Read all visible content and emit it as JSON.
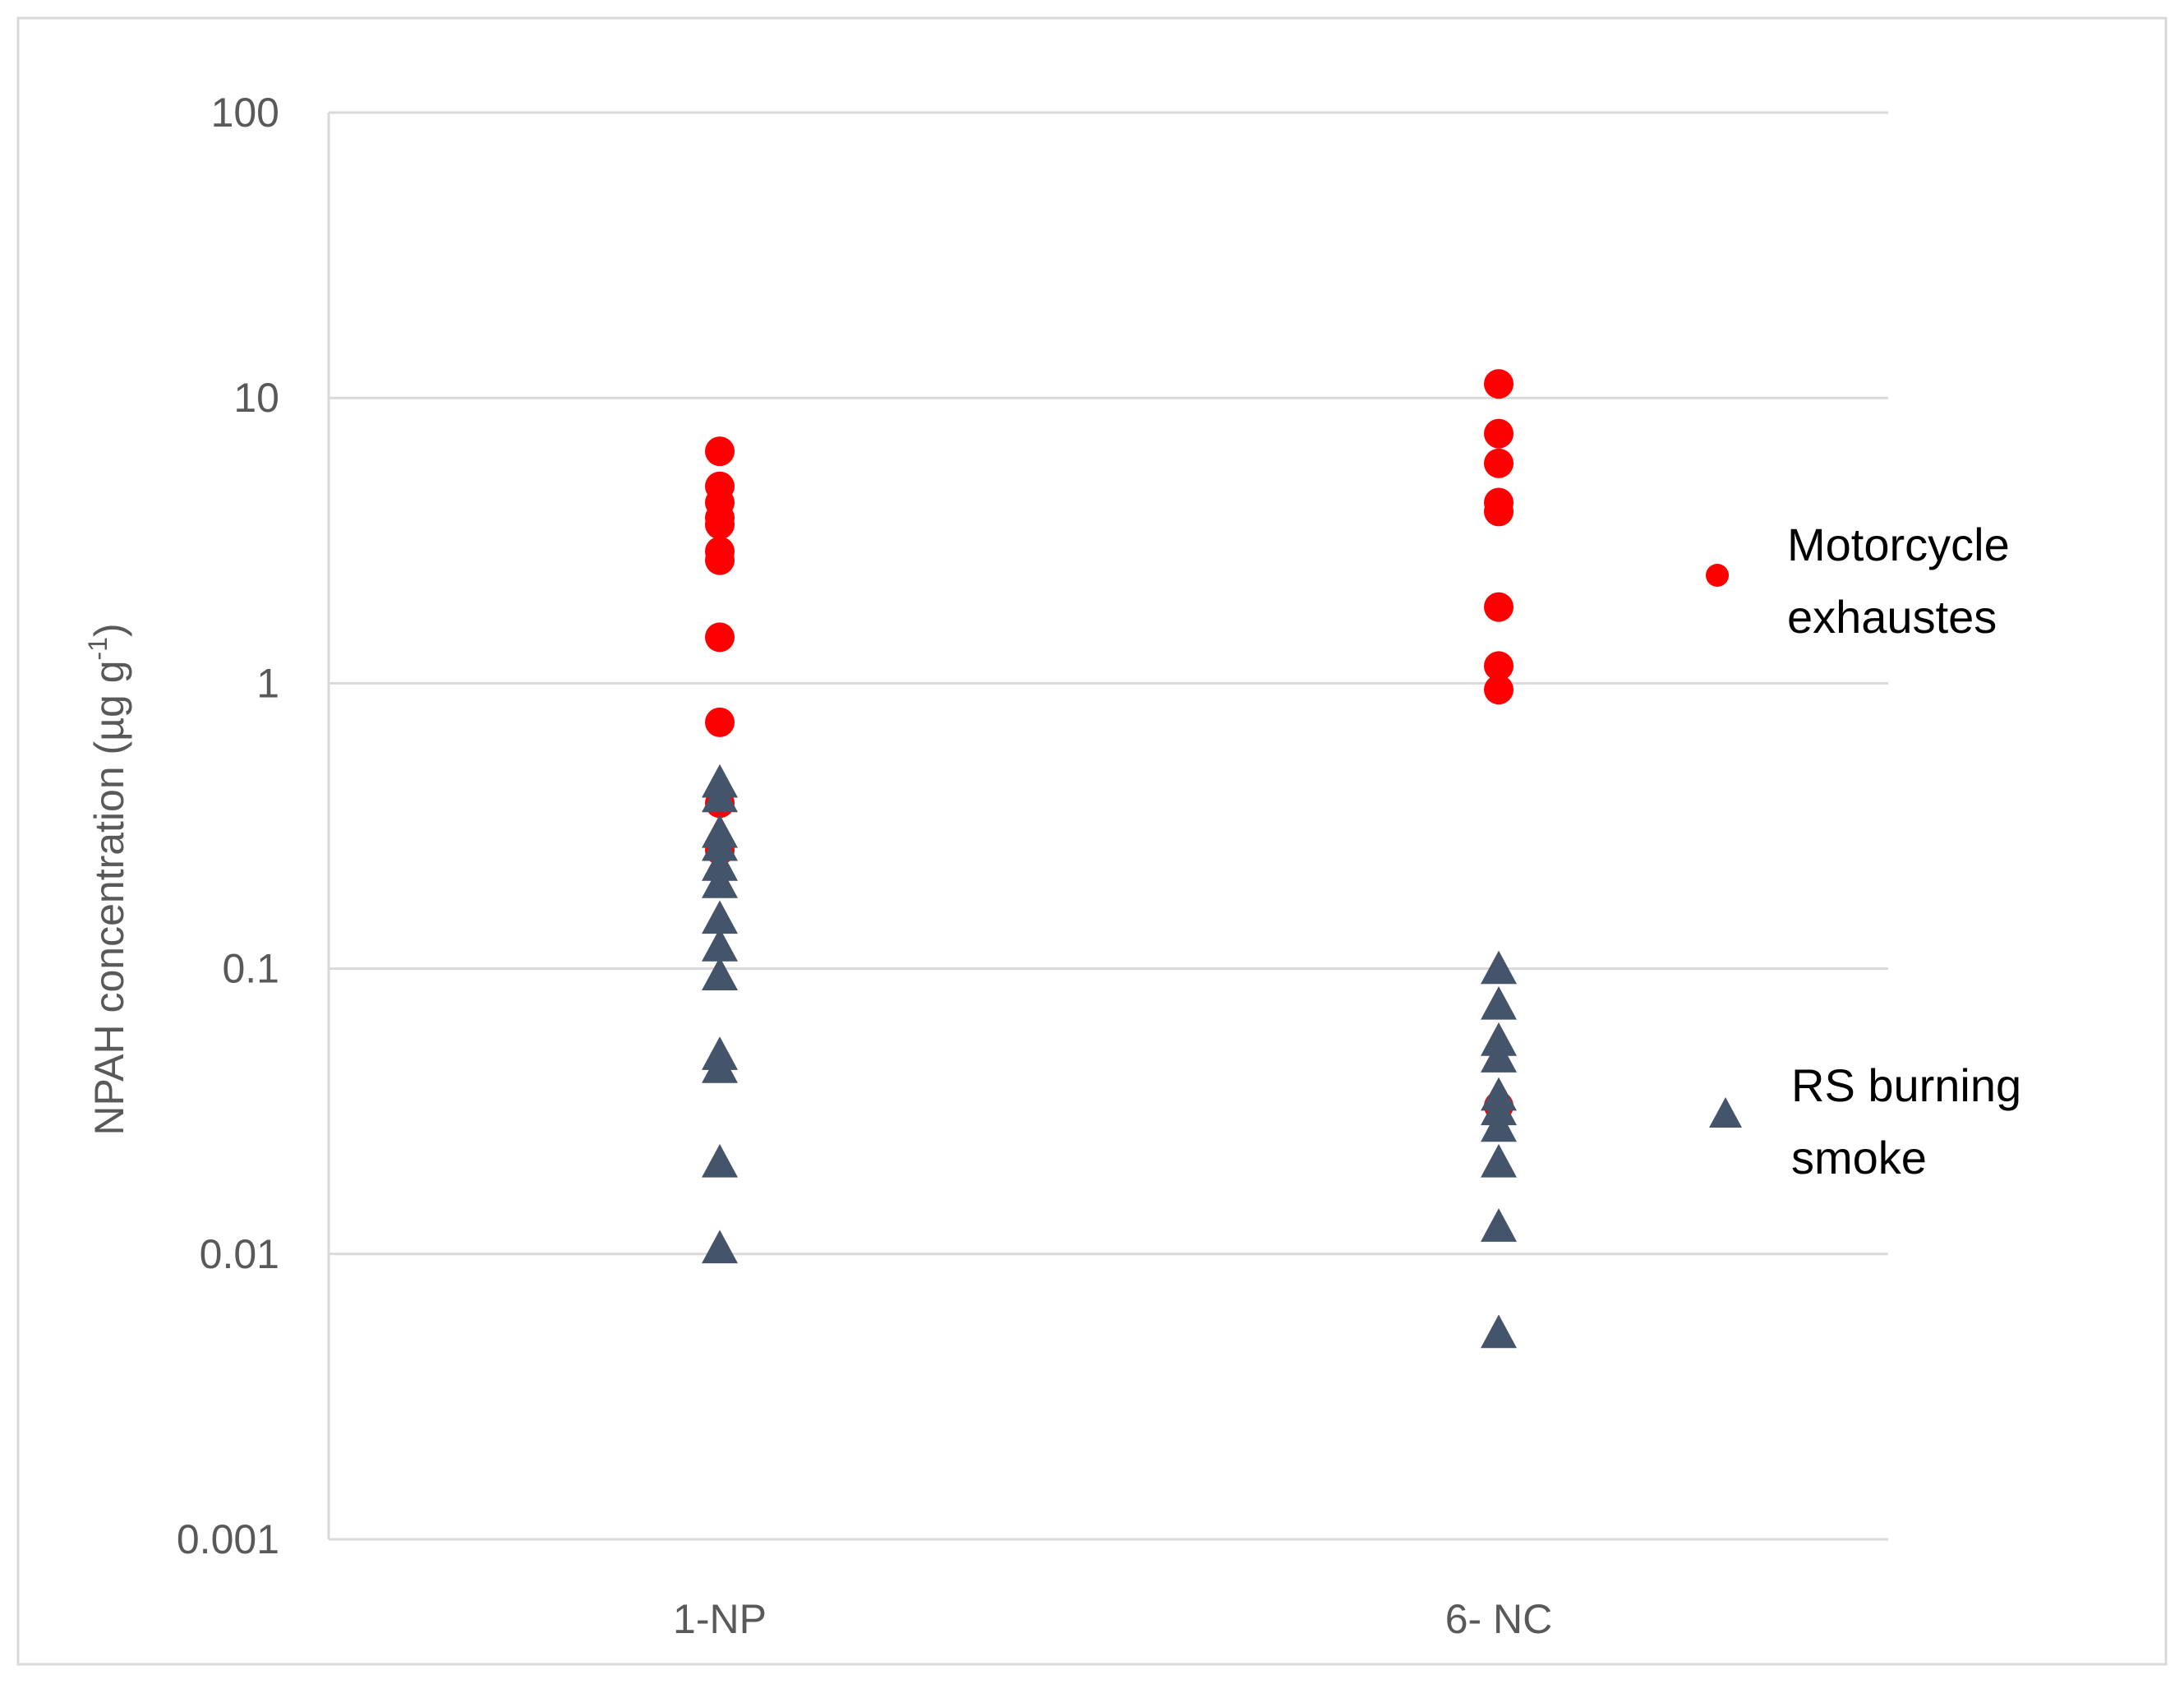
{
  "chart_data": {
    "type": "scatter",
    "y_scale": "log",
    "ylim": [
      0.001,
      100
    ],
    "grid": true,
    "legend_position": "right",
    "categories": [
      "1-NP",
      "6- NC"
    ],
    "y_ticks": [
      "100",
      "10",
      "1",
      "0.1",
      "0.01",
      "0.001"
    ],
    "ylabel": "NPAH concentration (µg g",
    "ylabel_superscript": "-1",
    "ylabel_close": ")",
    "series": [
      {
        "name_lines": [
          "Motorcycle",
          "exhaustes"
        ],
        "marker": "circle",
        "color": "#ff0000",
        "points": [
          {
            "category": "1-NP",
            "values": [
              6.5,
              4.9,
              4.3,
              3.8,
              3.6,
              2.9,
              2.7,
              1.45,
              0.73,
              0.38,
              0.26
            ]
          },
          {
            "category": "6- NC",
            "values": [
              11.2,
              7.5,
              5.9,
              4.3,
              4.0,
              1.85,
              1.15,
              0.95,
              0.033
            ]
          }
        ]
      },
      {
        "name_lines": [
          "RS burning",
          "smoke"
        ],
        "marker": "triangle",
        "color": "#44546a",
        "points": [
          {
            "category": "1-NP",
            "values": [
              0.45,
              0.4,
              0.3,
              0.27,
              0.23,
              0.2,
              0.15,
              0.12,
              0.095,
              0.05,
              0.045,
              0.021,
              0.0105
            ]
          },
          {
            "category": "6- NC",
            "values": [
              0.1,
              0.075,
              0.056,
              0.049,
              0.036,
              0.032,
              0.028,
              0.021,
              0.0125,
              0.0053
            ]
          }
        ]
      }
    ]
  }
}
